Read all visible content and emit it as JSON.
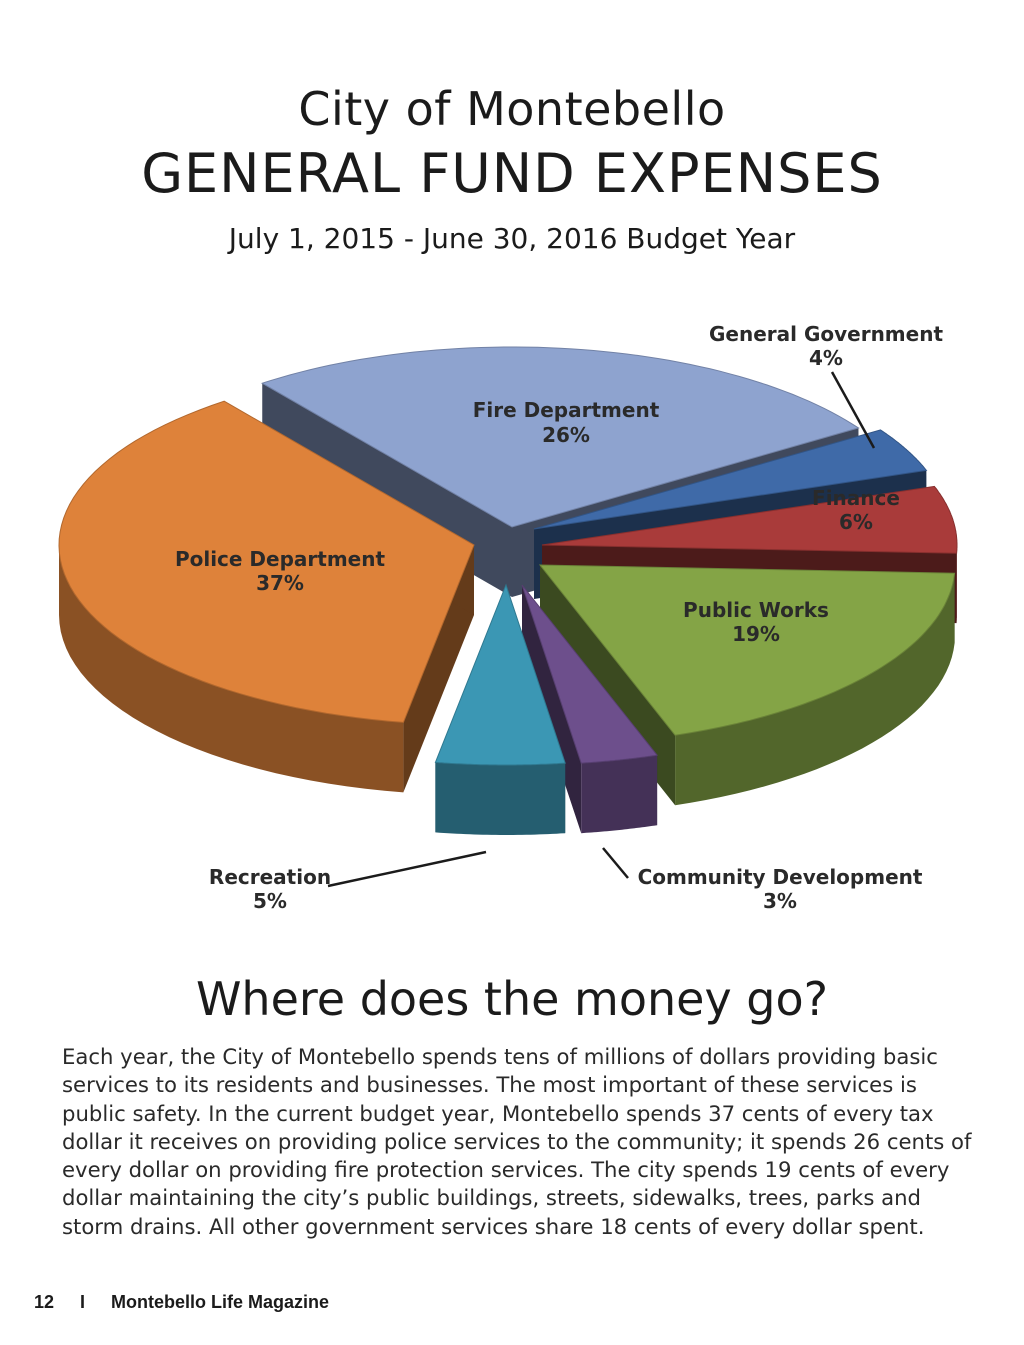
{
  "header": {
    "city": "City of Montebello",
    "title": "GENERAL FUND EXPENSES",
    "subtitle": "July 1, 2015 - June 30, 2016 Budget Year"
  },
  "chart_data": {
    "type": "pie",
    "title": "GENERAL FUND EXPENSES",
    "slices": [
      {
        "label": "Fire Department",
        "value": 26,
        "value_label": "26%",
        "color": "#8ea3cf"
      },
      {
        "label": "General Government",
        "value": 4,
        "value_label": "4%",
        "color": "#3f6aa8"
      },
      {
        "label": "Finance",
        "value": 6,
        "value_label": "6%",
        "color": "#a93b3a"
      },
      {
        "label": "Public Works",
        "value": 19,
        "value_label": "19%",
        "color": "#84a446"
      },
      {
        "label": "Community Development",
        "value": 3,
        "value_label": "3%",
        "color": "#6d4f8c"
      },
      {
        "label": "Recreation",
        "value": 5,
        "value_label": "5%",
        "color": "#3b97b4"
      },
      {
        "label": "Police Department",
        "value": 37,
        "value_label": "37%",
        "color": "#de823a"
      }
    ]
  },
  "section": {
    "headline": "Where does the money go?",
    "body": "Each year, the City of Montebello spends tens of millions of dollars providing basic services to its residents and businesses. The most important of these services is public safety. In the current budget year, Montebello spends 37 cents of every tax dollar it receives on providing police services to the community; it spends 26 cents of every dollar on providing fire protection services. The city spends 19 cents of every dollar maintaining the city’s public buildings, streets, sidewalks, trees, parks and storm drains. All other government services share 18 cents of every dollar spent."
  },
  "footer": {
    "page_number": "12",
    "separator": "I",
    "publication": "Montebello Life Magazine"
  }
}
